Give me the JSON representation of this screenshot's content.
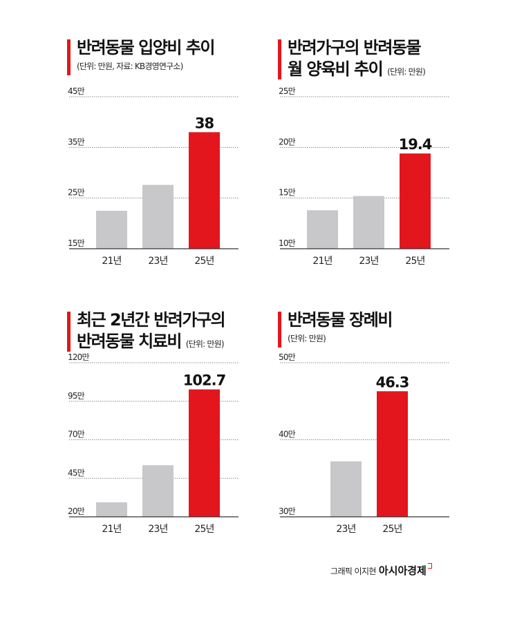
{
  "charts_text": [
    {
      "title_lines": [
        "반려동물 입양비 추이"
      ],
      "unit": "",
      "subtitle": "(단위: 만원, 자료: KB경영연구소)"
    },
    {
      "title_lines": [
        "반려가구의 반려동물",
        "월 양육비 추이"
      ],
      "unit": "(단위: 만원)",
      "subtitle": ""
    },
    {
      "title_lines": [
        "최근 2년간 반려가구의",
        "반려동물 치료비"
      ],
      "unit": "(단위: 만원)",
      "subtitle": ""
    },
    {
      "title_lines": [
        "반려동물 장례비"
      ],
      "unit": "",
      "subtitle": "(단위: 만원)"
    }
  ],
  "credit": {
    "label": "그래픽 이지현",
    "brand": "아시아경제"
  },
  "colors": {
    "highlight": "#e3161d",
    "bar": "#c8c8ca",
    "grid": "#888888"
  },
  "chart_data": [
    {
      "type": "bar",
      "title": "반려동물 입양비 추이",
      "categories": [
        "21년",
        "23년",
        "25년"
      ],
      "values": [
        22.5,
        27.6,
        38
      ],
      "data_labels": [
        "",
        "",
        "38"
      ],
      "yticks": [
        "45만",
        "35만",
        "25만",
        "15만"
      ],
      "ylim": [
        15,
        45
      ],
      "highlight_index": 2,
      "grid": true
    },
    {
      "type": "bar",
      "title": "반려가구의 반려동물 월 양육비 추이",
      "categories": [
        "21년",
        "23년",
        "25년"
      ],
      "values": [
        13.8,
        15.2,
        19.4
      ],
      "data_labels": [
        "",
        "",
        "19.4"
      ],
      "yticks": [
        "25만",
        "20만",
        "15만",
        "10만"
      ],
      "ylim": [
        10,
        25
      ],
      "highlight_index": 2,
      "grid": true
    },
    {
      "type": "bar",
      "title": "최근 2년간 반려가구의 반려동물 치료비",
      "categories": [
        "21년",
        "23년",
        "25년"
      ],
      "values": [
        29.4,
        53.5,
        102.7
      ],
      "data_labels": [
        "",
        "",
        "102.7"
      ],
      "yticks": [
        "120만",
        "95만",
        "70만",
        "45만",
        "20만"
      ],
      "ylim": [
        20,
        120
      ],
      "highlight_index": 2,
      "grid": true
    },
    {
      "type": "bar",
      "title": "반려동물 장례비",
      "categories": [
        "23년",
        "25년"
      ],
      "values": [
        37.2,
        46.3
      ],
      "data_labels": [
        "",
        "46.3"
      ],
      "yticks": [
        "50만",
        "40만",
        "30만"
      ],
      "ylim": [
        30,
        50
      ],
      "highlight_index": 1,
      "grid": true
    }
  ]
}
